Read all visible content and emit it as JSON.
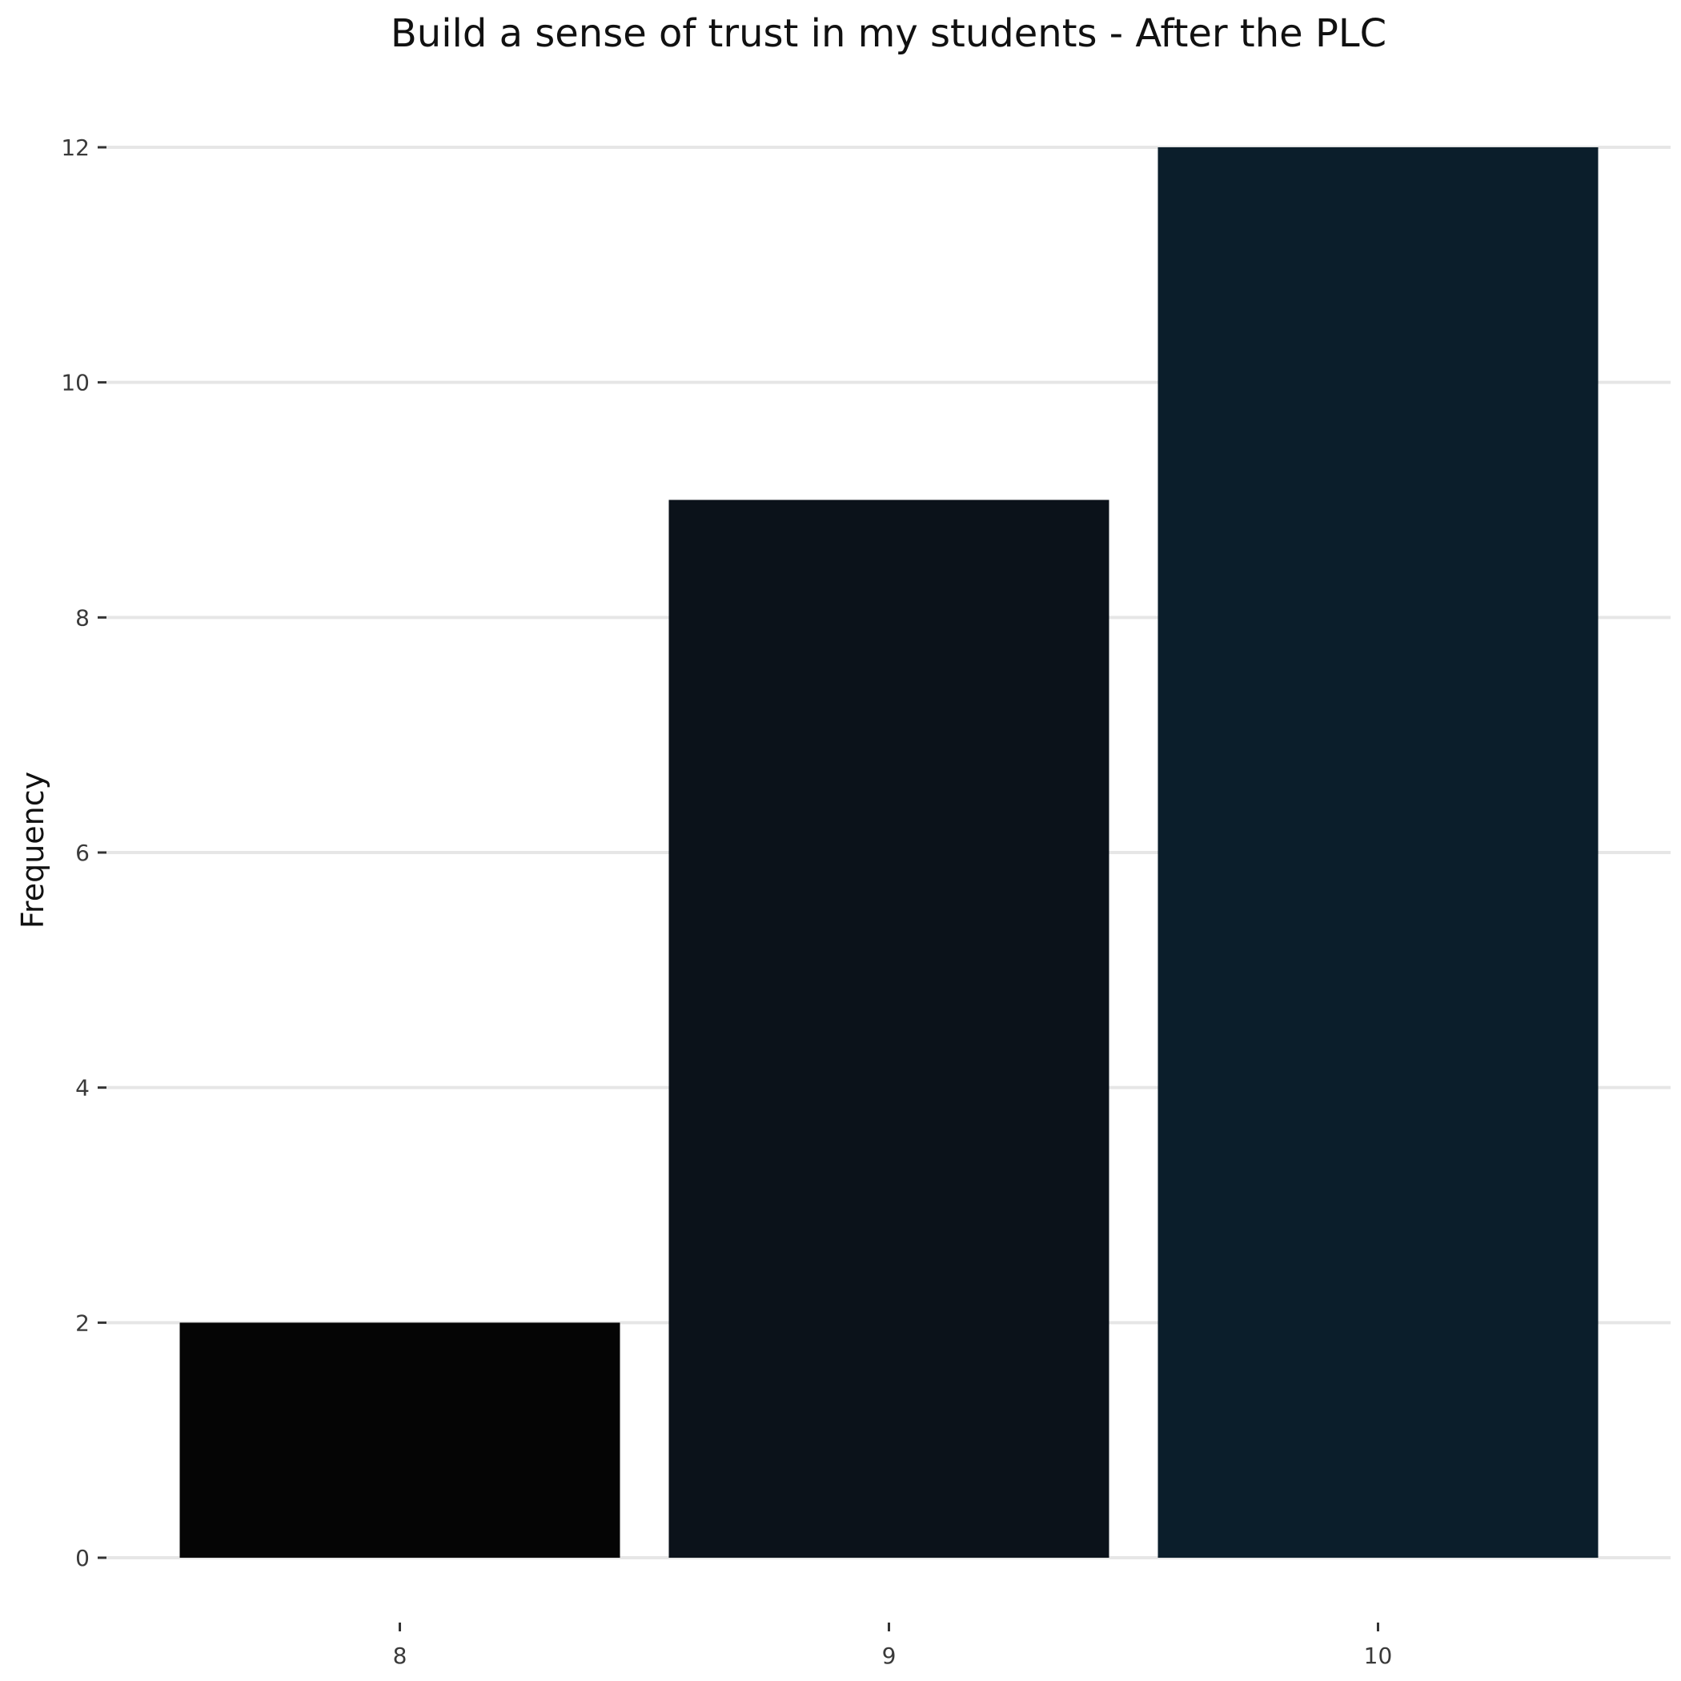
{
  "chart_data": {
    "type": "bar",
    "title": "Build a sense of trust in my students - After the PLC",
    "xlabel": "",
    "ylabel": "Frequency",
    "categories": [
      "8",
      "9",
      "10"
    ],
    "values": [
      2,
      9,
      12
    ],
    "bar_colors": [
      "#050505",
      "#0b121a",
      "#0b1e2b"
    ],
    "ylim": [
      0,
      12
    ],
    "y_ticks": [
      0,
      2,
      4,
      6,
      8,
      10,
      12
    ],
    "y_tick_labels": [
      "0",
      "2",
      "4",
      "6",
      "8",
      "10",
      "12"
    ],
    "grid": "horizontal",
    "legend": "none"
  }
}
